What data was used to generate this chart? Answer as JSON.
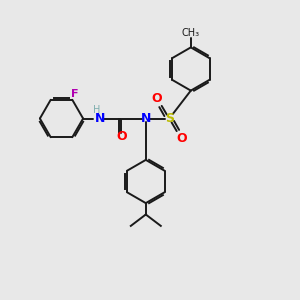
{
  "bg_color": "#e8e8e8",
  "bond_color": "#1a1a1a",
  "bond_width": 1.4,
  "dbo": 0.055,
  "F_color": "#b000b0",
  "N_color": "#0000ff",
  "O_color": "#ff0000",
  "S_color": "#bbbb00",
  "H_color": "#7fafaf",
  "ring_r": 0.72,
  "xlim": [
    0,
    10
  ],
  "ylim": [
    0,
    10
  ]
}
